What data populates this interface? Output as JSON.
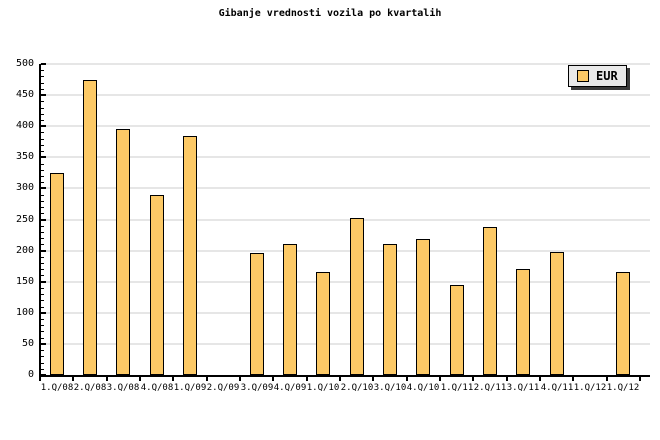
{
  "title": "Gibanje vrednosti vozila po kvartalih",
  "legend": {
    "label": "EUR",
    "swatch_color": "#fcc966"
  },
  "chart_data": {
    "type": "bar",
    "title": "Gibanje vrednosti vozila po kvartalih",
    "xlabel": "",
    "ylabel": "",
    "categories": [
      "1.Q/08",
      "2.Q/08",
      "3.Q/08",
      "4.Q/08",
      "1.Q/09",
      "2.Q/09",
      "3.Q/09",
      "4.Q/09",
      "1.Q/10",
      "2.Q/10",
      "3.Q/10",
      "4.Q/10",
      "1.Q/11",
      "2.Q/11",
      "3.Q/11",
      "4.Q/11",
      "1.Q/12",
      "1.Q/12"
    ],
    "series": [
      {
        "name": "EUR",
        "values": [
          325,
          475,
          396,
          290,
          385,
          null,
          196,
          210,
          165,
          252,
          210,
          218,
          145,
          238,
          171,
          197,
          null,
          165
        ]
      }
    ],
    "ylim": [
      0,
      500
    ],
    "ytick_step": 50,
    "ytick_minor_step": 10,
    "yticks": [
      0,
      50,
      100,
      150,
      200,
      250,
      300,
      350,
      400,
      450,
      500
    ],
    "grid": true,
    "legend_position": "top-right",
    "legend_entries": [
      "EUR"
    ],
    "bar_color": "#fcc966",
    "bar_border_color": "#000000",
    "gridline_color": "#e6e6e6",
    "axis_color": "#000000",
    "background_color": "#ffffff"
  }
}
